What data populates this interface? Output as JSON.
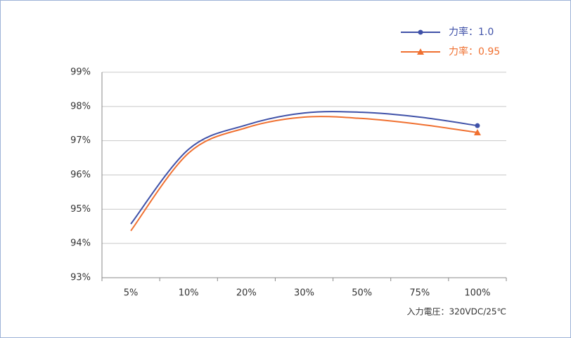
{
  "chart_data": {
    "type": "line",
    "categories": [
      "5%",
      "10%",
      "20%",
      "30%",
      "50%",
      "75%",
      "100%"
    ],
    "series": [
      {
        "name": "力率：1.0",
        "color": "#3f51a8",
        "marker": "circle",
        "values": [
          94.57,
          96.75,
          97.46,
          97.81,
          97.83,
          97.69,
          97.44
        ]
      },
      {
        "name": "力率：0.95",
        "color": "#f07030",
        "marker": "triangle",
        "values": [
          94.37,
          96.64,
          97.38,
          97.69,
          97.65,
          97.48,
          97.24
        ]
      }
    ],
    "ylim": [
      93,
      99
    ],
    "yticks": [
      {
        "value": 93,
        "label": "93%"
      },
      {
        "value": 94,
        "label": "94%"
      },
      {
        "value": 95,
        "label": "95%"
      },
      {
        "value": 96,
        "label": "96%"
      },
      {
        "value": 97,
        "label": "97%"
      },
      {
        "value": 98,
        "label": "98%"
      },
      {
        "value": 99,
        "label": "99%"
      }
    ],
    "grid": true,
    "legend": "top-right",
    "annotation": "入力電圧：320VDC/25℃"
  }
}
